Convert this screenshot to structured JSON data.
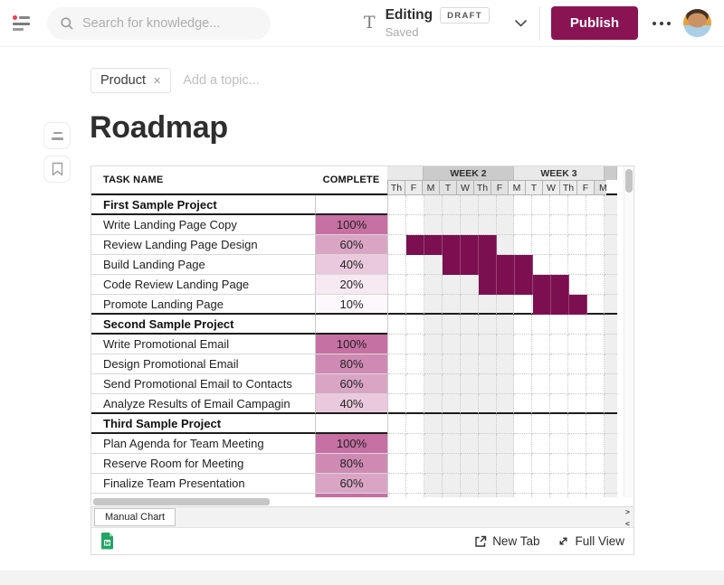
{
  "topbar": {
    "search_placeholder": "Search for knowledge...",
    "editing_label": "Editing",
    "draft_badge": "DRAFT",
    "saved_label": "Saved",
    "publish_label": "Publish"
  },
  "topics": {
    "chip_label": "Product",
    "remove_glyph": "✕",
    "add_placeholder": "Add a topic..."
  },
  "page": {
    "title": "Roadmap"
  },
  "sheet": {
    "task_header": "TASK NAME",
    "complete_header": "COMPLETE",
    "weeks": [
      {
        "label": "",
        "days": [
          "Th",
          "F"
        ],
        "dark": false
      },
      {
        "label": "WEEK 2",
        "days": [
          "M",
          "T",
          "W",
          "Th",
          "F"
        ],
        "dark": true
      },
      {
        "label": "WEEK 3",
        "days": [
          "M",
          "T",
          "W",
          "Th",
          "F"
        ],
        "dark": false
      },
      {
        "label": "",
        "days": [
          "M"
        ],
        "dark": true
      }
    ],
    "shaded_columns": [
      2,
      3,
      4,
      5,
      6,
      12
    ],
    "rows": [
      {
        "type": "section",
        "name": "First Sample Project"
      },
      {
        "type": "task",
        "name": "Write Landing Page Copy",
        "complete": "100%",
        "fill": "#c770a3",
        "bar": null
      },
      {
        "type": "task",
        "name": "Review Landing Page Design",
        "complete": "60%",
        "fill": "#daa5c5",
        "bar": [
          1,
          5
        ]
      },
      {
        "type": "task",
        "name": "Build Landing Page",
        "complete": "40%",
        "fill": "#eac9dc",
        "bar": [
          3,
          7
        ]
      },
      {
        "type": "task",
        "name": "Code Review Landing Page",
        "complete": "20%",
        "fill": "#f7e9f1",
        "bar": [
          5,
          9
        ]
      },
      {
        "type": "task",
        "name": "Promote Landing Page",
        "complete": "10%",
        "fill": "#fdf8fb",
        "bar": [
          8,
          10
        ],
        "section_end": true
      },
      {
        "type": "section",
        "name": "Second Sample Project"
      },
      {
        "type": "task",
        "name": "Write Promotional Email",
        "complete": "100%",
        "fill": "#c770a3",
        "bar": null
      },
      {
        "type": "task",
        "name": "Design Promotional Email",
        "complete": "80%",
        "fill": "#cf8ab4",
        "bar": null
      },
      {
        "type": "task",
        "name": "Send Promotional Email to Contacts",
        "complete": "60%",
        "fill": "#daa5c5",
        "bar": null
      },
      {
        "type": "task",
        "name": "Analyze Results of Email Campagin",
        "complete": "40%",
        "fill": "#eac9dc",
        "bar": null,
        "section_end": true
      },
      {
        "type": "section",
        "name": "Third Sample Project"
      },
      {
        "type": "task",
        "name": "Plan Agenda for Team Meeting",
        "complete": "100%",
        "fill": "#c770a3",
        "bar": null
      },
      {
        "type": "task",
        "name": "Reserve Room for Meeting",
        "complete": "80%",
        "fill": "#cf8ab4",
        "bar": null
      },
      {
        "type": "task",
        "name": "Finalize Team Presentation",
        "complete": "60%",
        "fill": "#daa5c5",
        "bar": null
      },
      {
        "type": "task",
        "name": "",
        "complete": "",
        "fill": "#c770a3",
        "bar": null
      }
    ],
    "tab_label": "Manual Chart",
    "tab_next": ">",
    "tab_prev": "<",
    "footer": {
      "new_tab_label": "New Tab",
      "full_view_label": "Full View"
    },
    "colors": {
      "bar": "#7b0f4f",
      "shaded_column": "#efefef",
      "week_band_dark": "#cbcbcb",
      "week_band_light": "#e9e9e9",
      "day_cell_dark": "#e1e1e1",
      "day_cell_light": "#ececec"
    }
  },
  "colors": {
    "publish_bg": "#8a1453",
    "notification_red": "#f03e4d"
  }
}
